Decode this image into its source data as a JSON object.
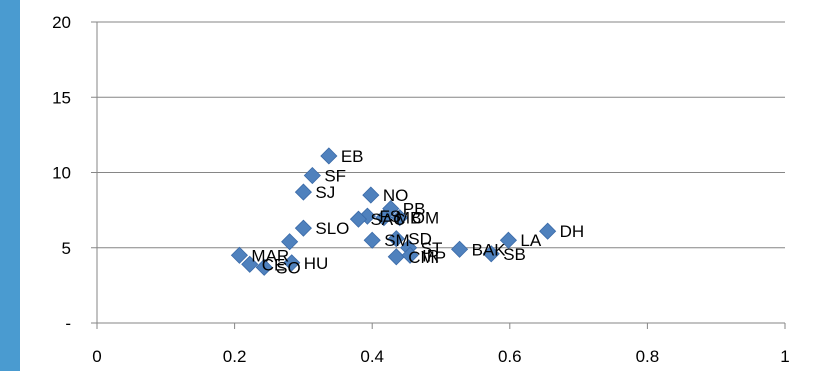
{
  "chart_data": {
    "type": "scatter",
    "title": "",
    "xlabel": "",
    "ylabel": "",
    "xlim": [
      0,
      1
    ],
    "ylim": [
      0,
      20
    ],
    "x_ticks": [
      0,
      0.2,
      0.4,
      0.6,
      0.8,
      1
    ],
    "x_tick_labels": [
      "0",
      "0.2",
      "0.4",
      "0.6",
      "0.8",
      "1"
    ],
    "y_ticks": [
      0,
      5,
      10,
      15,
      20
    ],
    "y_tick_labels": [
      "-",
      "5",
      "10",
      "15",
      "20"
    ],
    "grid": "horizontal",
    "legend": "none",
    "colors": {
      "marker": "#4F81BD",
      "marker_edge": "#3A6AA8",
      "gridline": "#868686",
      "axis": "#868686",
      "left_strip": "#4A9BD0"
    },
    "points": [
      {
        "label": "EB",
        "x": 0.337,
        "y": 11.1
      },
      {
        "label": "SF",
        "x": 0.313,
        "y": 9.8
      },
      {
        "label": "SJ",
        "x": 0.3,
        "y": 8.7
      },
      {
        "label": "NO",
        "x": 0.398,
        "y": 8.5
      },
      {
        "label": "PB",
        "x": 0.427,
        "y": 7.6
      },
      {
        "label": "FS",
        "x": 0.393,
        "y": 7.1
      },
      {
        "label": "MB",
        "x": 0.417,
        "y": 7.0
      },
      {
        "label": "OM",
        "x": 0.44,
        "y": 7.0
      },
      {
        "label": "SAC",
        "x": 0.38,
        "y": 6.9
      },
      {
        "label": "SLO",
        "x": 0.3,
        "y": 6.3
      },
      {
        "label": "DH",
        "x": 0.655,
        "y": 6.1
      },
      {
        "label": "LA",
        "x": 0.598,
        "y": 5.5
      },
      {
        "label": "SM",
        "x": 0.4,
        "y": 5.5
      },
      {
        "label": "SD",
        "x": 0.435,
        "y": 5.6
      },
      {
        "label": "ST",
        "x": 0.453,
        "y": 5.0
      },
      {
        "label": "BAK",
        "x": 0.527,
        "y": 4.9
      },
      {
        "label": "SB",
        "x": 0.573,
        "y": 4.6
      },
      {
        "label": "CMP",
        "x": 0.435,
        "y": 4.4
      },
      {
        "label": "IR",
        "x": 0.455,
        "y": 4.5
      },
      {
        "label": "MAR",
        "x": 0.207,
        "y": 4.5
      },
      {
        "label": "",
        "x": 0.28,
        "y": 5.4
      },
      {
        "label": "CE",
        "x": 0.222,
        "y": 3.9
      },
      {
        "label": "HU",
        "x": 0.283,
        "y": 4.0
      },
      {
        "label": "SO",
        "x": 0.243,
        "y": 3.7
      }
    ]
  }
}
